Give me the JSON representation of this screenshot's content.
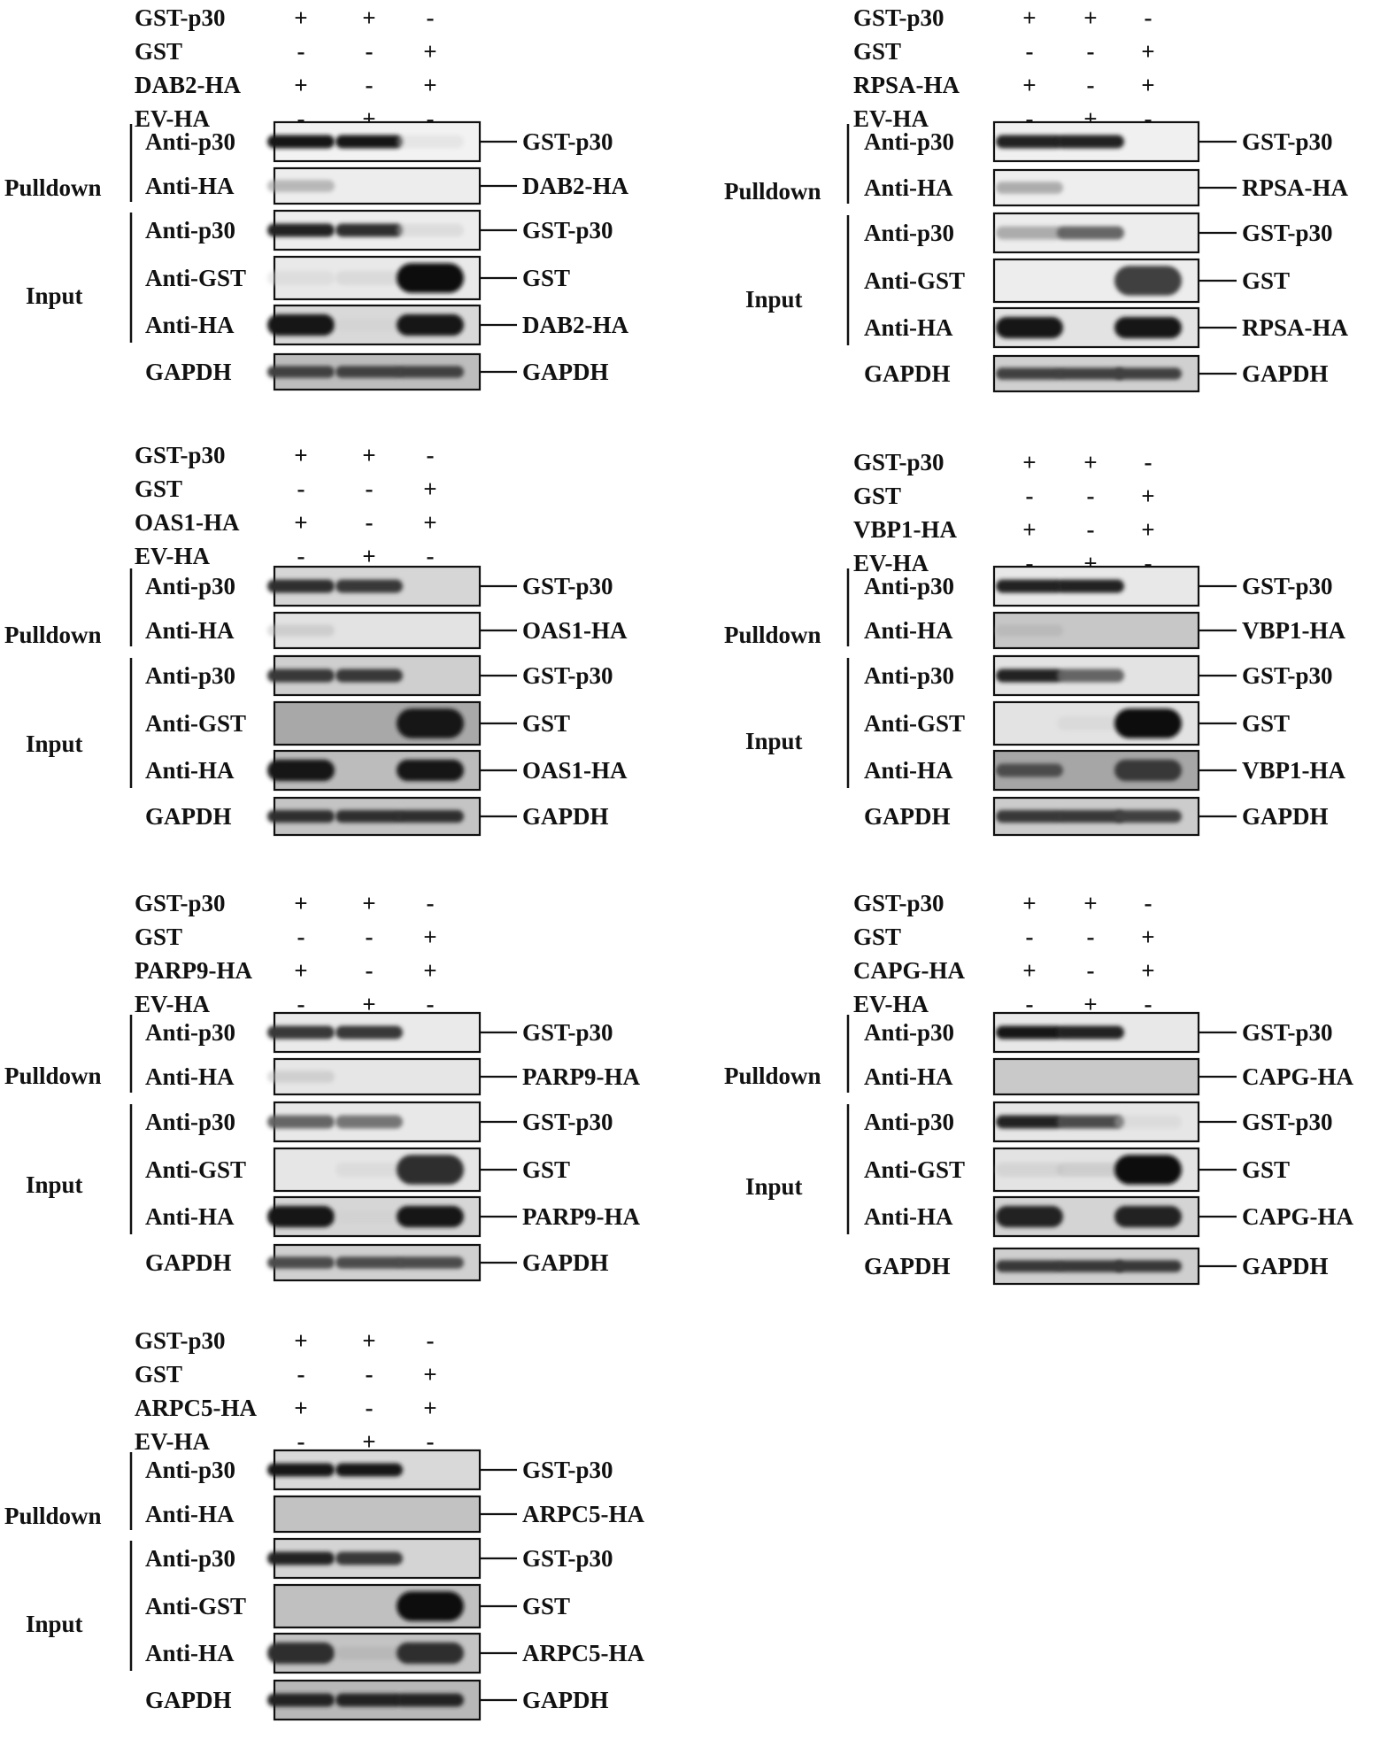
{
  "signs": {
    "plus": "+",
    "minus": "-"
  },
  "section_labels": {
    "pulldown": "Pulldown",
    "input": "Input"
  },
  "panels": [
    {
      "id": "dab2",
      "conditions": [
        {
          "label": "GST-p30",
          "states": [
            "+",
            "+",
            "-"
          ]
        },
        {
          "label": "GST",
          "states": [
            "-",
            "-",
            "+"
          ]
        },
        {
          "label": "DAB2-HA",
          "states": [
            "+",
            "-",
            "+"
          ]
        },
        {
          "label": "EV-HA",
          "states": [
            "-",
            "+",
            "-"
          ]
        }
      ],
      "blots": [
        {
          "antibody": "Anti-p30",
          "target": "GST-p30",
          "background": "#f2f2f2",
          "bands": [
            0.95,
            0.95,
            0.03
          ]
        },
        {
          "antibody": "Anti-HA",
          "target": "DAB2-HA",
          "background": "#ededed",
          "bands": [
            0.3,
            0.0,
            0.0
          ]
        },
        {
          "antibody": "Anti-p30",
          "target": "GST-p30",
          "background": "#ededed",
          "bands": [
            0.9,
            0.85,
            0.08
          ]
        },
        {
          "antibody": "Anti-GST",
          "target": "GST",
          "background": "#e9e9e9",
          "bands": [
            0.05,
            0.08,
            1.0
          ]
        },
        {
          "antibody": "Anti-HA",
          "target": "DAB2-HA",
          "background": "#d9d9d9",
          "bands": [
            0.95,
            0.05,
            0.95
          ]
        },
        {
          "antibody": "GAPDH",
          "target": "GAPDH",
          "background": "#bdbdbd",
          "bands": [
            0.75,
            0.75,
            0.75
          ]
        }
      ]
    },
    {
      "id": "rpsa",
      "conditions": [
        {
          "label": "GST-p30",
          "states": [
            "+",
            "+",
            "-"
          ]
        },
        {
          "label": "GST",
          "states": [
            "-",
            "-",
            "+"
          ]
        },
        {
          "label": "RPSA-HA",
          "states": [
            "+",
            "-",
            "+"
          ]
        },
        {
          "label": "EV-HA",
          "states": [
            "-",
            "+",
            "-"
          ]
        }
      ],
      "blots": [
        {
          "antibody": "Anti-p30",
          "target": "GST-p30",
          "background": "#f0f0f0",
          "bands": [
            0.9,
            0.9,
            0.0
          ]
        },
        {
          "antibody": "Anti-HA",
          "target": "RPSA-HA",
          "background": "#eeeeee",
          "bands": [
            0.35,
            0.0,
            0.0
          ]
        },
        {
          "antibody": "Anti-p30",
          "target": "GST-p30",
          "background": "#ededed",
          "bands": [
            0.35,
            0.6,
            0.0
          ]
        },
        {
          "antibody": "Anti-GST",
          "target": "GST",
          "background": "#ededed",
          "bands": [
            0.0,
            0.0,
            0.75
          ]
        },
        {
          "antibody": "Anti-HA",
          "target": "RPSA-HA",
          "background": "#e3e3e3",
          "bands": [
            0.95,
            0.0,
            0.95
          ]
        },
        {
          "antibody": "GAPDH",
          "target": "GAPDH",
          "background": "#d0d0d0",
          "bands": [
            0.75,
            0.75,
            0.75
          ]
        }
      ]
    },
    {
      "id": "oas1",
      "conditions": [
        {
          "label": "GST-p30",
          "states": [
            "+",
            "+",
            "-"
          ]
        },
        {
          "label": "GST",
          "states": [
            "-",
            "-",
            "+"
          ]
        },
        {
          "label": "OAS1-HA",
          "states": [
            "+",
            "-",
            "+"
          ]
        },
        {
          "label": "EV-HA",
          "states": [
            "-",
            "+",
            "-"
          ]
        }
      ],
      "blots": [
        {
          "antibody": "Anti-p30",
          "target": "GST-p30",
          "background": "#d6d6d6",
          "bands": [
            0.85,
            0.8,
            0.0
          ]
        },
        {
          "antibody": "Anti-HA",
          "target": "OAS1-HA",
          "background": "#e3e3e3",
          "bands": [
            0.15,
            0.0,
            0.0
          ]
        },
        {
          "antibody": "Anti-p30",
          "target": "GST-p30",
          "background": "#cfcfcf",
          "bands": [
            0.8,
            0.8,
            0.0
          ]
        },
        {
          "antibody": "Anti-GST",
          "target": "GST",
          "background": "#a8a8a8",
          "bands": [
            0.0,
            0.0,
            0.95
          ]
        },
        {
          "antibody": "Anti-HA",
          "target": "OAS1-HA",
          "background": "#bcbcbc",
          "bands": [
            0.95,
            0.0,
            0.95
          ]
        },
        {
          "antibody": "GAPDH",
          "target": "GAPDH",
          "background": "#c4c4c4",
          "bands": [
            0.85,
            0.85,
            0.85
          ]
        }
      ]
    },
    {
      "id": "vbp1",
      "conditions": [
        {
          "label": "GST-p30",
          "states": [
            "+",
            "+",
            "-"
          ]
        },
        {
          "label": "GST",
          "states": [
            "-",
            "-",
            "+"
          ]
        },
        {
          "label": "VBP1-HA",
          "states": [
            "+",
            "-",
            "+"
          ]
        },
        {
          "label": "EV-HA",
          "states": [
            "-",
            "+",
            "-"
          ]
        }
      ],
      "blots": [
        {
          "antibody": "Anti-p30",
          "target": "GST-p30",
          "background": "#e8e8e8",
          "bands": [
            0.9,
            0.9,
            0.0
          ]
        },
        {
          "antibody": "Anti-HA",
          "target": "VBP1-HA",
          "background": "#c7c7c7",
          "bands": [
            0.2,
            0.0,
            0.0
          ]
        },
        {
          "antibody": "Anti-p30",
          "target": "GST-p30",
          "background": "#e3e3e3",
          "bands": [
            0.9,
            0.6,
            0.0
          ]
        },
        {
          "antibody": "Anti-GST",
          "target": "GST",
          "background": "#e3e3e3",
          "bands": [
            0.0,
            0.05,
            1.0
          ]
        },
        {
          "antibody": "Anti-HA",
          "target": "VBP1-HA",
          "background": "#a6a6a6",
          "bands": [
            0.7,
            0.0,
            0.8
          ]
        },
        {
          "antibody": "GAPDH",
          "target": "GAPDH",
          "background": "#cccccc",
          "bands": [
            0.8,
            0.8,
            0.75
          ]
        }
      ]
    },
    {
      "id": "parp9",
      "conditions": [
        {
          "label": "GST-p30",
          "states": [
            "+",
            "+",
            "-"
          ]
        },
        {
          "label": "GST",
          "states": [
            "-",
            "-",
            "+"
          ]
        },
        {
          "label": "PARP9-HA",
          "states": [
            "+",
            "-",
            "+"
          ]
        },
        {
          "label": "EV-HA",
          "states": [
            "-",
            "+",
            "-"
          ]
        }
      ],
      "blots": [
        {
          "antibody": "Anti-p30",
          "target": "GST-p30",
          "background": "#eaeaea",
          "bands": [
            0.8,
            0.8,
            0.0
          ]
        },
        {
          "antibody": "Anti-HA",
          "target": "PARP9-HA",
          "background": "#e6e6e6",
          "bands": [
            0.15,
            0.0,
            0.0
          ]
        },
        {
          "antibody": "Anti-p30",
          "target": "GST-p30",
          "background": "#e8e8e8",
          "bands": [
            0.6,
            0.55,
            0.0
          ]
        },
        {
          "antibody": "Anti-GST",
          "target": "GST",
          "background": "#e6e6e6",
          "bands": [
            0.0,
            0.05,
            0.85
          ]
        },
        {
          "antibody": "Anti-HA",
          "target": "PARP9-HA",
          "background": "#d6d6d6",
          "bands": [
            0.95,
            0.05,
            0.95
          ]
        },
        {
          "antibody": "GAPDH",
          "target": "GAPDH",
          "background": "#d0d0d0",
          "bands": [
            0.7,
            0.7,
            0.7
          ]
        }
      ]
    },
    {
      "id": "capg",
      "conditions": [
        {
          "label": "GST-p30",
          "states": [
            "+",
            "+",
            "-"
          ]
        },
        {
          "label": "GST",
          "states": [
            "-",
            "-",
            "+"
          ]
        },
        {
          "label": "CAPG-HA",
          "states": [
            "+",
            "-",
            "+"
          ]
        },
        {
          "label": "EV-HA",
          "states": [
            "-",
            "+",
            "-"
          ]
        }
      ],
      "blots": [
        {
          "antibody": "Anti-p30",
          "target": "GST-p30",
          "background": "#e8e8e8",
          "bands": [
            0.95,
            0.9,
            0.0
          ]
        },
        {
          "antibody": "Anti-HA",
          "target": "CAPG-HA",
          "background": "#c9c9c9",
          "bands": [
            0.0,
            0.0,
            0.0
          ]
        },
        {
          "antibody": "Anti-p30",
          "target": "GST-p30",
          "background": "#e6e6e6",
          "bands": [
            0.9,
            0.7,
            0.05
          ]
        },
        {
          "antibody": "Anti-GST",
          "target": "GST",
          "background": "#e3e3e3",
          "bands": [
            0.1,
            0.15,
            1.0
          ]
        },
        {
          "antibody": "Anti-HA",
          "target": "CAPG-HA",
          "background": "#d4d4d4",
          "bands": [
            0.9,
            0.0,
            0.9
          ]
        },
        {
          "antibody": "GAPDH",
          "target": "GAPDH",
          "background": "#cfcfcf",
          "bands": [
            0.8,
            0.8,
            0.8
          ]
        }
      ]
    },
    {
      "id": "arpc5",
      "conditions": [
        {
          "label": "GST-p30",
          "states": [
            "+",
            "+",
            "-"
          ]
        },
        {
          "label": "GST",
          "states": [
            "-",
            "-",
            "+"
          ]
        },
        {
          "label": "ARPC5-HA",
          "states": [
            "+",
            "-",
            "+"
          ]
        },
        {
          "label": "EV-HA",
          "states": [
            "-",
            "+",
            "-"
          ]
        }
      ],
      "blots": [
        {
          "antibody": "Anti-p30",
          "target": "GST-p30",
          "background": "#d9d9d9",
          "bands": [
            0.95,
            0.95,
            0.0
          ]
        },
        {
          "antibody": "Anti-HA",
          "target": "ARPC5-HA",
          "background": "#c2c2c2",
          "bands": [
            0.0,
            0.0,
            0.0
          ]
        },
        {
          "antibody": "Anti-p30",
          "target": "GST-p30",
          "background": "#d4d4d4",
          "bands": [
            0.9,
            0.8,
            0.0
          ]
        },
        {
          "antibody": "Anti-GST",
          "target": "GST",
          "background": "#c0c0c0",
          "bands": [
            0.0,
            0.0,
            1.0
          ]
        },
        {
          "antibody": "Anti-HA",
          "target": "ARPC5-HA",
          "background": "#c4c4c4",
          "bands": [
            0.85,
            0.2,
            0.85
          ]
        },
        {
          "antibody": "GAPDH",
          "target": "GAPDH",
          "background": "#b8b8b8",
          "bands": [
            0.9,
            0.9,
            0.9
          ]
        }
      ]
    }
  ]
}
